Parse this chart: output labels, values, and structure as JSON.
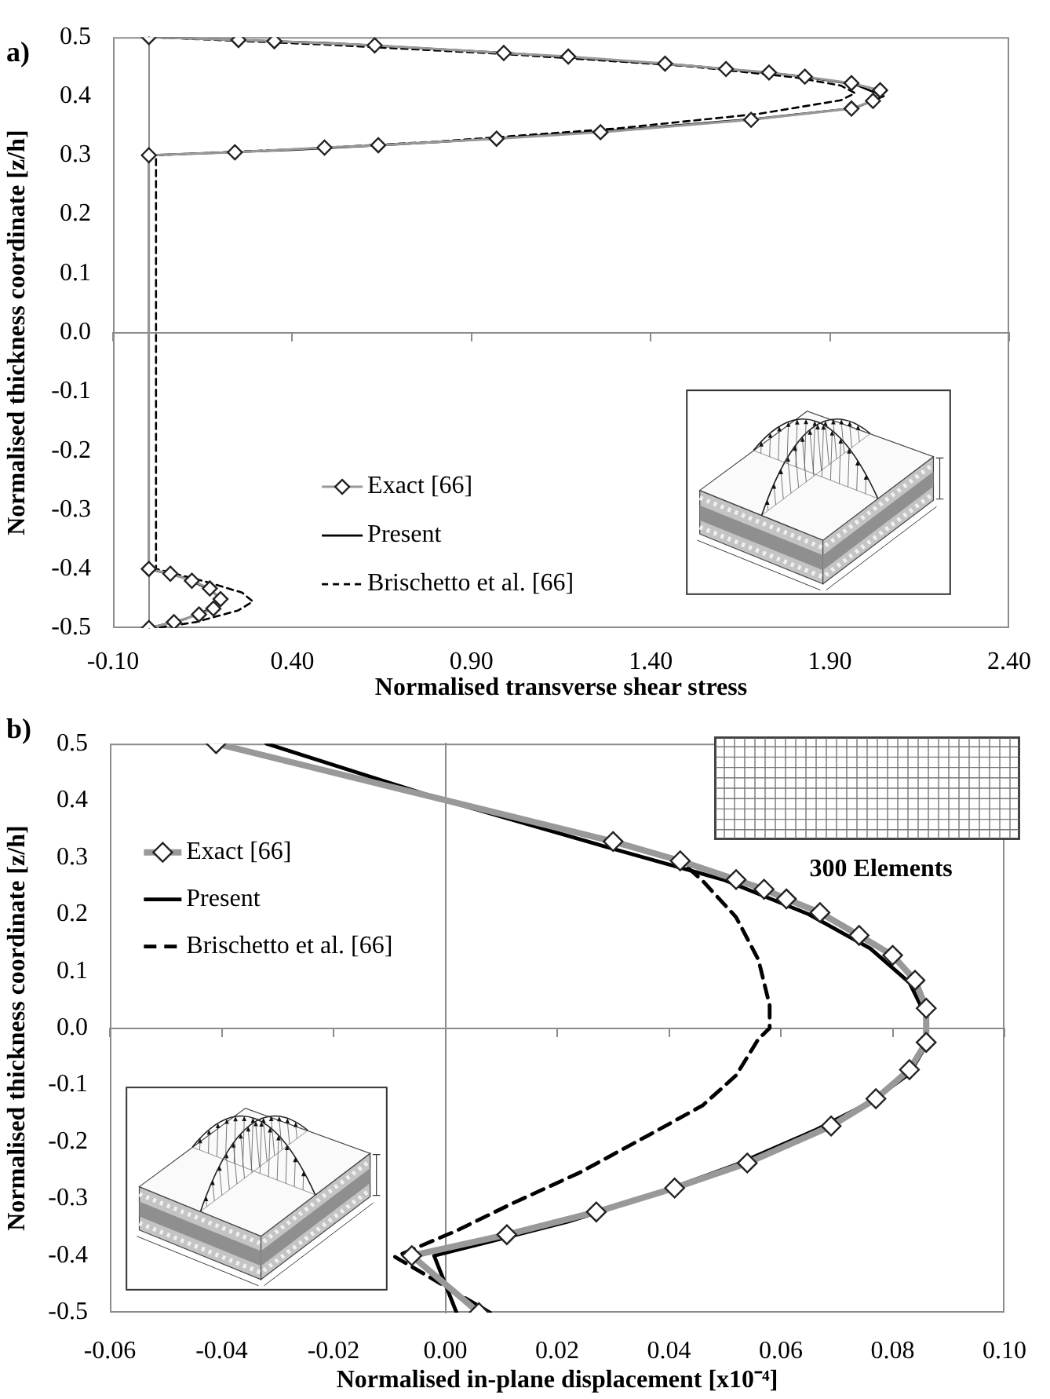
{
  "chart_data": [
    {
      "type": "line",
      "title": "a)",
      "xlabel": "Normalised transverse shear stress",
      "ylabel": "Normalised thickness coordinate [z/h]",
      "xlim": [
        -0.1,
        2.4
      ],
      "xticks": [
        {
          "value": -0.1,
          "label": "-0.10"
        },
        {
          "value": 0.4,
          "label": "0.40"
        },
        {
          "value": 0.9,
          "label": "0.90"
        },
        {
          "value": 1.4,
          "label": "1.40"
        },
        {
          "value": 1.9,
          "label": "1.90"
        },
        {
          "value": 2.4,
          "label": "2.40"
        }
      ],
      "ylim": [
        -0.5,
        0.5
      ],
      "yticks": [
        -0.5,
        -0.4,
        -0.3,
        -0.2,
        -0.1,
        {
          "value": 0,
          "label": "0.0"
        },
        0.1,
        0.2,
        0.3,
        0.4,
        0.5
      ],
      "legend": "bottom left",
      "series": [
        {
          "name": "Exact [66]",
          "color": "#999999",
          "marker": "diamond",
          "line_style": "solid",
          "x": [
            0,
            0.25,
            0.35,
            0.63,
            0.99,
            1.17,
            1.44,
            1.61,
            1.73,
            1.83,
            1.96,
            2.04,
            2.02,
            1.96,
            1.68,
            1.26,
            0.97,
            0.64,
            0.49,
            0.24,
            0,
            0,
            0.06,
            0.12,
            0.17,
            0.2,
            0.18,
            0.14,
            0.07,
            0
          ],
          "values": [
            0.5,
            0.495,
            0.493,
            0.486,
            0.473,
            0.467,
            0.455,
            0.446,
            0.44,
            0.433,
            0.422,
            0.41,
            0.392,
            0.379,
            0.36,
            0.339,
            0.328,
            0.317,
            0.313,
            0.305,
            0.3,
            -0.4,
            -0.408,
            -0.42,
            -0.433,
            -0.451,
            -0.467,
            -0.477,
            -0.49,
            -0.5
          ]
        },
        {
          "name": "Present",
          "color": "#000000",
          "marker": "none",
          "line_style": "solid",
          "x": [
            0,
            0.5,
            1.0,
            1.5,
            1.8,
            1.97,
            2.05,
            1.97,
            1.7,
            1.3,
            0.8,
            0.4,
            0,
            0,
            0.1,
            0.17,
            0.2,
            0.17,
            0.1,
            0
          ],
          "values": [
            0.5,
            0.49,
            0.473,
            0.452,
            0.435,
            0.42,
            0.4,
            0.38,
            0.362,
            0.342,
            0.322,
            0.309,
            0.3,
            -0.4,
            -0.415,
            -0.435,
            -0.45,
            -0.468,
            -0.485,
            -0.5
          ]
        },
        {
          "name": "Brischetto et al. [66]",
          "color": "#000000",
          "marker": "none",
          "line_style": "dashed",
          "x": [
            0,
            0.5,
            1.0,
            1.5,
            1.8,
            1.93,
            1.97,
            1.93,
            1.7,
            1.3,
            0.8,
            0.4,
            0.02,
            0.02,
            0.15,
            0.26,
            0.29,
            0.25,
            0.13,
            0.02
          ],
          "values": [
            0.5,
            0.487,
            0.471,
            0.451,
            0.432,
            0.418,
            0.405,
            0.393,
            0.37,
            0.345,
            0.323,
            0.31,
            0.3,
            -0.4,
            -0.42,
            -0.44,
            -0.455,
            -0.47,
            -0.49,
            -0.5
          ]
        }
      ]
    },
    {
      "type": "line",
      "title": "b)",
      "xlabel": "Normalised in-plane displacement [x10⁻⁴]",
      "ylabel": "Normalised thickness coordinate [z/h]",
      "xlim": [
        -0.06,
        0.1
      ],
      "xticks": [
        -0.06,
        -0.04,
        -0.02,
        {
          "value": 0,
          "label": "0.00"
        },
        0.02,
        0.04,
        0.06,
        0.08,
        {
          "value": 0.1,
          "label": "0.10"
        }
      ],
      "ylim": [
        -0.5,
        0.5
      ],
      "yticks": [
        -0.5,
        -0.4,
        -0.3,
        -0.2,
        -0.1,
        {
          "value": 0,
          "label": "0.0"
        },
        0.1,
        0.2,
        0.3,
        0.4,
        0.5
      ],
      "legend": "top left",
      "annotations": [
        "300 Elements"
      ],
      "series": [
        {
          "name": "Exact [66]",
          "color": "#999999",
          "marker": "diamond",
          "line_style": "solid",
          "x": [
            -0.041,
            0.03,
            0.042,
            0.052,
            0.057,
            0.061,
            0.067,
            0.074,
            0.08,
            0.084,
            0.086,
            0.086,
            0.083,
            0.077,
            0.069,
            0.054,
            0.041,
            0.027,
            0.011,
            -0.006,
            0.006
          ],
          "values": [
            0.5,
            0.328,
            0.294,
            0.261,
            0.244,
            0.227,
            0.203,
            0.163,
            0.128,
            0.084,
            0.035,
            -0.025,
            -0.073,
            -0.124,
            -0.172,
            -0.237,
            -0.281,
            -0.323,
            -0.363,
            -0.4,
            -0.5
          ]
        },
        {
          "name": "Present",
          "color": "#000000",
          "marker": "none",
          "line_style": "solid",
          "x": [
            -0.032,
            0,
            0.03,
            0.05,
            0.065,
            0.076,
            0.083,
            0.086,
            0.086,
            0.083,
            0.076,
            0.066,
            0.052,
            0.038,
            0.022,
            0.008,
            -0.002,
            0.002
          ],
          "values": [
            0.5,
            0.4,
            0.315,
            0.26,
            0.2,
            0.14,
            0.08,
            0.02,
            -0.03,
            -0.08,
            -0.13,
            -0.18,
            -0.24,
            -0.29,
            -0.34,
            -0.375,
            -0.4,
            -0.5
          ]
        },
        {
          "name": "Brischetto et al. [66]",
          "color": "#000000",
          "marker": "none",
          "line_style": "dashed",
          "x": [
            -0.041,
            0,
            0.03,
            0.042,
            0.046,
            0.052,
            0.056,
            0.058,
            0.058,
            0.056,
            0.052,
            0.046,
            0.036,
            0.024,
            0.012,
            0.002,
            -0.009,
            0.008
          ],
          "values": [
            0.5,
            0.4,
            0.328,
            0.294,
            0.259,
            0.195,
            0.12,
            0.04,
            0,
            -0.019,
            -0.083,
            -0.136,
            -0.19,
            -0.254,
            -0.308,
            -0.356,
            -0.402,
            -0.5
          ]
        }
      ]
    }
  ]
}
